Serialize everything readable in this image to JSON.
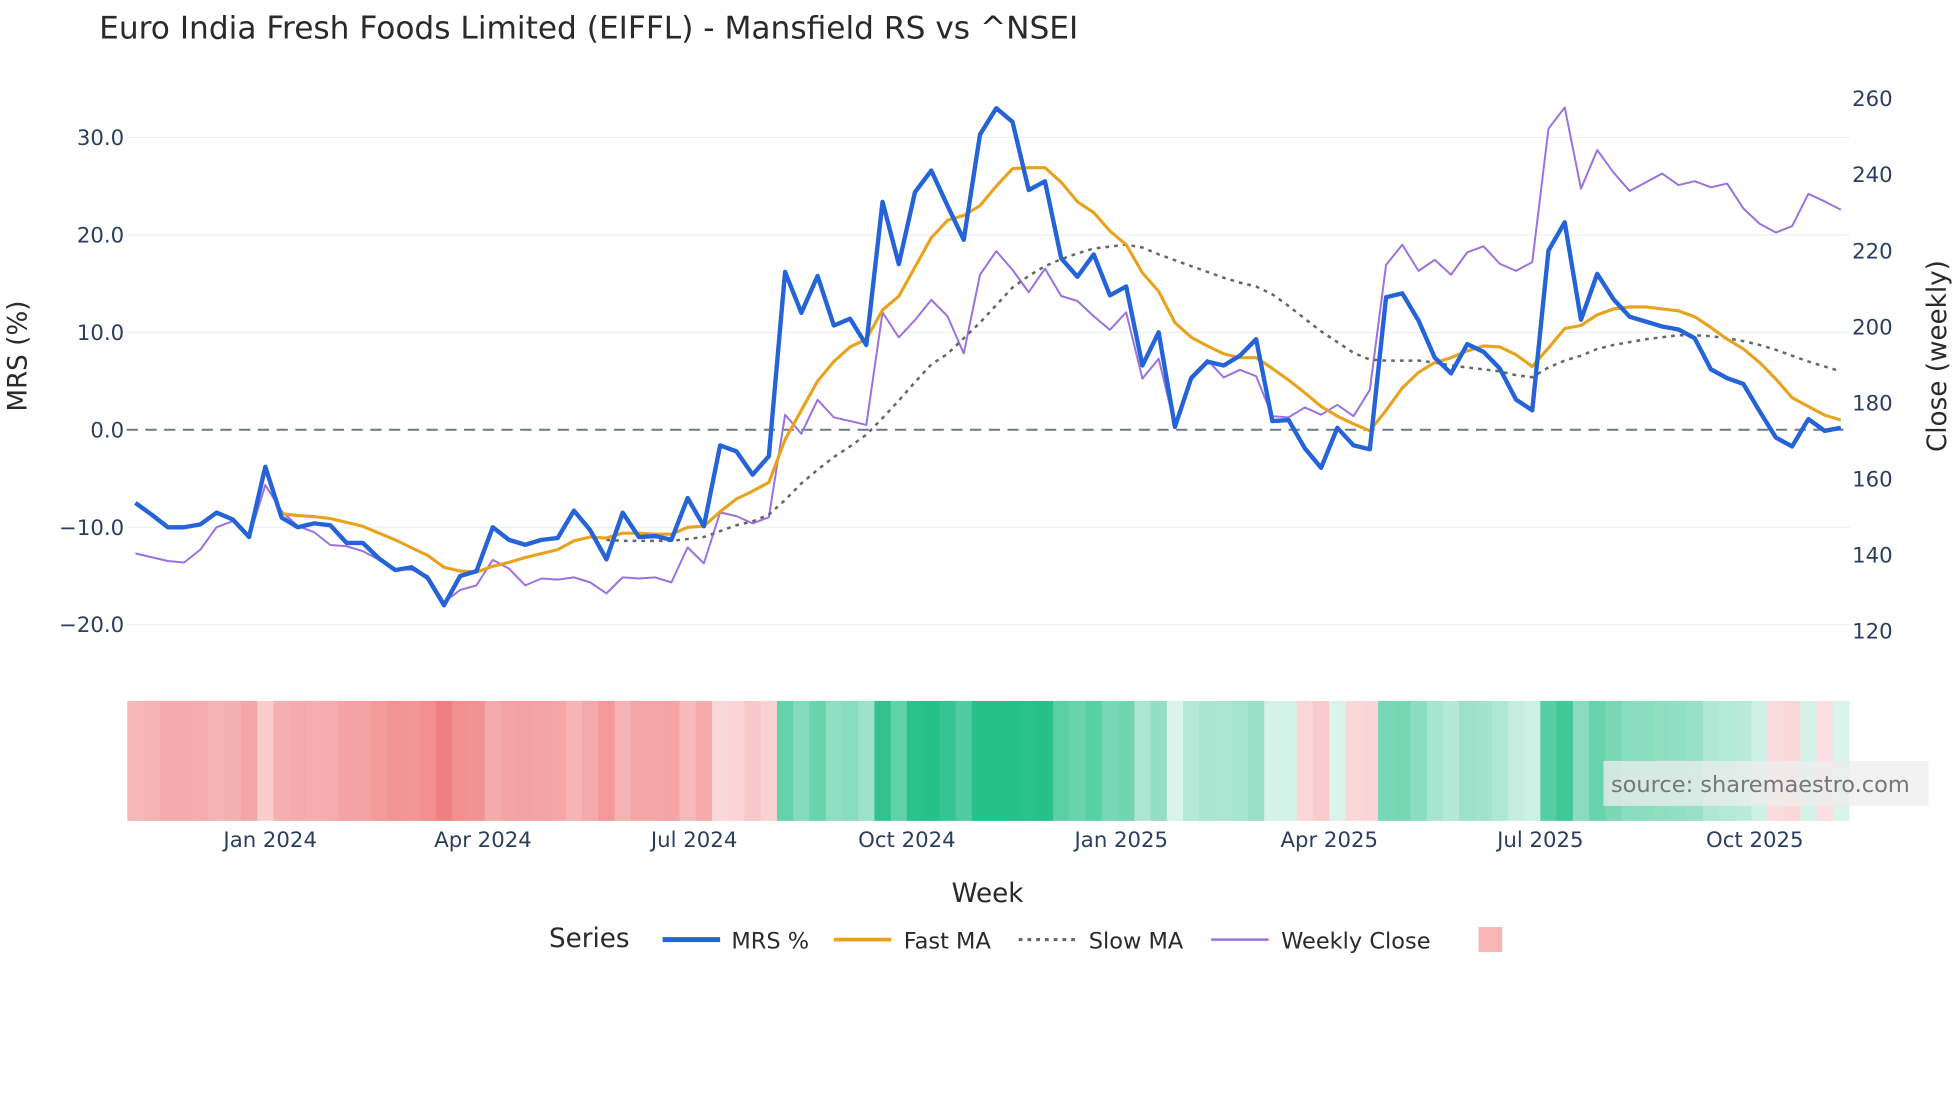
{
  "chart_data": {
    "type": "line",
    "title": "Euro India Fresh Foods Limited (EIFFL) - Mansfield RS vs ^NSEI",
    "xlabel": "Week",
    "ylabel": "MRS (%)",
    "y2label": "Close (weekly)",
    "ylim": [
      -22.5,
      34
    ],
    "y2lim": [
      113,
      264
    ],
    "y_ticks": [
      "30.0",
      "20.0",
      "10.0",
      "0.0",
      "−10.0",
      "−20.0"
    ],
    "y_tick_values": [
      30,
      20,
      10,
      0,
      -10,
      -20
    ],
    "y2_ticks": [
      "260",
      "240",
      "220",
      "200",
      "180",
      "160",
      "140",
      "120"
    ],
    "y2_tick_values": [
      260,
      240,
      220,
      200,
      180,
      160,
      140,
      120
    ],
    "x_ticks": [
      {
        "label": "Jan 2024",
        "week": 8.3
      },
      {
        "label": "Apr 2024",
        "week": 21.4
      },
      {
        "label": "Jul 2024",
        "week": 34.4
      },
      {
        "label": "Oct 2024",
        "week": 47.5
      },
      {
        "label": "Jan 2025",
        "week": 60.7
      },
      {
        "label": "Apr 2025",
        "week": 73.5
      },
      {
        "label": "Jul 2025",
        "week": 86.5
      },
      {
        "label": "Oct 2025",
        "week": 99.7
      }
    ],
    "zero_line": 0,
    "legend_title": "Series",
    "legend_placement": "bottom-center",
    "source": "source: sharemaestro.com",
    "series": [
      {
        "name": "MRS %",
        "color": "#2563d9",
        "axis": "left",
        "start": 0,
        "values": [
          -7.5,
          -8.7,
          -10,
          -10,
          -9.7,
          -8.5,
          -9.2,
          -11,
          -3.8,
          -9,
          -10,
          -9.6,
          -9.8,
          -11.6,
          -11.6,
          -13.2,
          -14.4,
          -14.1,
          -15.2,
          -18,
          -15,
          -14.5,
          -10,
          -11.3,
          -11.8,
          -11.3,
          -11.1,
          -8.3,
          -10.3,
          -13.3,
          -8.5,
          -11,
          -10.9,
          -11.3,
          -7,
          -9.9,
          -1.6,
          -2.2,
          -4.6,
          -2.7,
          16.2,
          12,
          15.8,
          10.7,
          11.4,
          8.7,
          23.4,
          17,
          24.4,
          26.6,
          23,
          19.5,
          30.3,
          33,
          31.6,
          24.6,
          25.5,
          17.6,
          15.7,
          18,
          13.8,
          14.7,
          6.6,
          10,
          0.3,
          5.3,
          7,
          6.6,
          7.6,
          9.3,
          0.9,
          1,
          -1.9,
          -3.9,
          0.2,
          -1.6,
          -2,
          13.6,
          14,
          11.2,
          7.4,
          5.8,
          8.8,
          8,
          6.3,
          3.1,
          2,
          18.4,
          21.3,
          11.3,
          16,
          13.4,
          11.6,
          11.1,
          10.6,
          10.3,
          9.4,
          6.2,
          5.3,
          4.7,
          1.9,
          -0.8,
          -1.7,
          1.1,
          -0.1,
          0.2
        ]
      },
      {
        "name": "Fast MA",
        "color": "#e8a21c",
        "axis": "left",
        "start": 9,
        "values": [
          -8.6,
          -8.8,
          -8.9,
          -9.1,
          -9.5,
          -9.9,
          -10.6,
          -11.3,
          -12.1,
          -12.9,
          -14.1,
          -14.5,
          -14.6,
          -14,
          -13.6,
          -13.1,
          -12.7,
          -12.3,
          -11.4,
          -11,
          -11.1,
          -10.6,
          -10.6,
          -10.7,
          -10.7,
          -10,
          -9.9,
          -8.4,
          -7.1,
          -6.3,
          -5.4,
          -1,
          2,
          5,
          7,
          8.5,
          9.3,
          12.3,
          13.7,
          16.7,
          19.7,
          21.5,
          22,
          23,
          25,
          26.8,
          26.9,
          26.9,
          25.4,
          23.4,
          22.3,
          20.4,
          19,
          16.1,
          14.2,
          11,
          9.5,
          8.6,
          7.8,
          7.4,
          7.4,
          6.3,
          5.1,
          3.8,
          2.4,
          1.4,
          0.6,
          -0.1,
          2,
          4.3,
          5.9,
          6.9,
          7.4,
          8.1,
          8.6,
          8.5,
          7.7,
          6.5,
          8.4,
          10.4,
          10.7,
          11.8,
          12.4,
          12.6,
          12.6,
          12.4,
          12.2,
          11.6,
          10.5,
          9.3,
          8.3,
          6.9,
          5.2,
          3.3,
          2.4,
          1.5,
          1
        ]
      },
      {
        "name": "Slow MA",
        "color": "#666666",
        "axis": "left",
        "start": 29,
        "dash": "dot",
        "values": [
          -11.3,
          -11.4,
          -11.4,
          -11.4,
          -11.4,
          -11.2,
          -11,
          -10.4,
          -9.8,
          -9.4,
          -8.7,
          -7.2,
          -5.5,
          -4.1,
          -2.8,
          -1.7,
          -0.5,
          1.2,
          3,
          4.9,
          6.7,
          7.8,
          9.4,
          11,
          12.8,
          14.6,
          15.8,
          16.8,
          17.5,
          18.1,
          18.6,
          18.8,
          19,
          18.7,
          18,
          17.4,
          16.8,
          16.2,
          15.6,
          15.1,
          14.7,
          13.9,
          12.7,
          11.4,
          10.1,
          9,
          7.9,
          7.2,
          7.1,
          7.1,
          7.1,
          6.9,
          6.6,
          6.4,
          6.2,
          6,
          5.6,
          5.4,
          6.4,
          7.1,
          7.6,
          8.3,
          8.7,
          9,
          9.3,
          9.5,
          9.7,
          9.7,
          9.6,
          9.4,
          9.1,
          8.7,
          8.2,
          7.6,
          7,
          6.5,
          6
        ]
      },
      {
        "name": "Weekly Close",
        "color": "#9b72e0",
        "axis": "right",
        "start": 0,
        "values": [
          140.4,
          139.4,
          138.4,
          138,
          141.4,
          147.3,
          148.9,
          144.6,
          158.4,
          151.5,
          147.6,
          146,
          142.6,
          142.3,
          141,
          138.7,
          136.4,
          136.1,
          134.5,
          127.6,
          130.8,
          132,
          138.7,
          136.4,
          132,
          133.8,
          133.5,
          134.1,
          132.8,
          129.9,
          134.1,
          133.8,
          134.1,
          132.8,
          142,
          137.8,
          151.2,
          150.2,
          148.3,
          149.9,
          176.9,
          171.9,
          180.8,
          176.2,
          175.2,
          174.2,
          203.8,
          197.2,
          201.8,
          207.1,
          202.8,
          193,
          213.7,
          219.9,
          215,
          209.1,
          215.3,
          208.1,
          206.8,
          202.8,
          199.2,
          203.8,
          186.4,
          191.6,
          173.9,
          186.7,
          191.3,
          186.7,
          188.7,
          187,
          176.5,
          176.2,
          178.8,
          176.9,
          179.5,
          176.5,
          183.4,
          216.3,
          221.6,
          214.7,
          217.6,
          213.7,
          219.6,
          221.2,
          216.6,
          214.7,
          217,
          252.1,
          257.7,
          236.3,
          246.5,
          240.6,
          235.7,
          238,
          240.3,
          237.3,
          238.3,
          236.7,
          237.7,
          231.1,
          227.1,
          224.8,
          226.5,
          235,
          233,
          230.8
        ]
      }
    ],
    "heatmap": {
      "source_series": "MRS %",
      "negative_color": "#f08080",
      "positive_color": "#26c08a",
      "legend_swatch_color": "#f7b6b6"
    }
  }
}
